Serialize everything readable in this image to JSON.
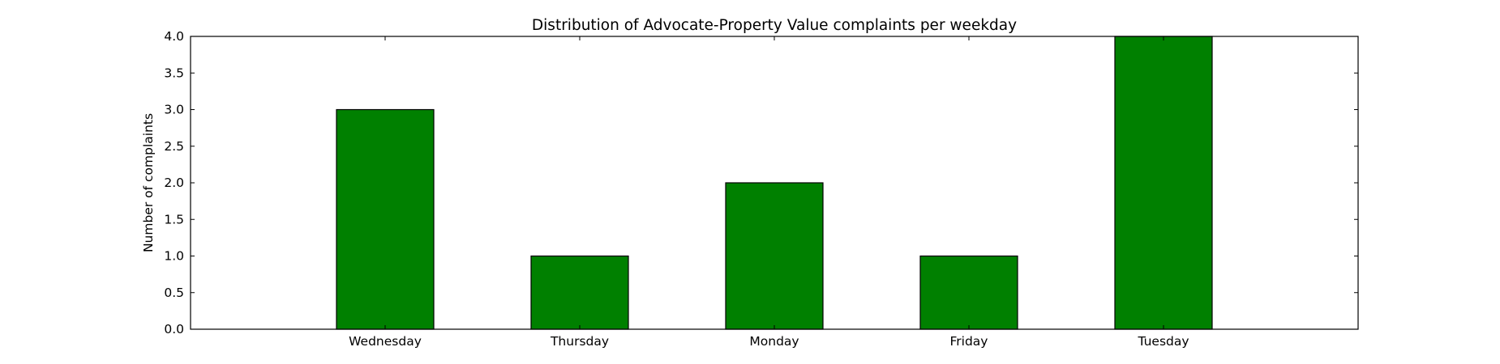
{
  "chart_data": {
    "type": "bar",
    "title": "Distribution of  Advocate-Property Value complaints per weekday",
    "xlabel": "",
    "ylabel": "Number of complaints",
    "categories": [
      "Wednesday",
      "Thursday",
      "Monday",
      "Friday",
      "Tuesday"
    ],
    "values": [
      3,
      1,
      2,
      1,
      4
    ],
    "ylim": [
      0,
      4
    ],
    "yticks": [
      "0.0",
      "0.5",
      "1.0",
      "1.5",
      "2.0",
      "2.5",
      "3.0",
      "3.5",
      "4.0"
    ],
    "grid": false,
    "colors": {
      "bar": "#008000",
      "bar_edge": "#000000",
      "axes": "#000000",
      "background": "#ffffff"
    }
  }
}
